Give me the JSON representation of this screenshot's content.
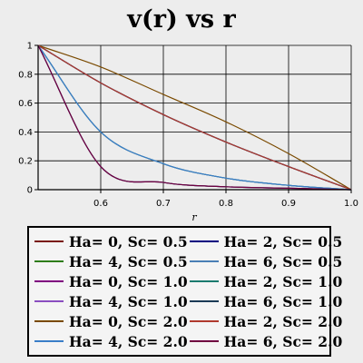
{
  "chart_data": {
    "type": "line",
    "title": "v(r) vs r",
    "xlabel": "r",
    "ylabel": "",
    "xlim": [
      0.5,
      1.0
    ],
    "ylim": [
      0,
      1
    ],
    "xticks": [
      "0.6",
      "0.7",
      "0.8",
      "0.9",
      "1.0"
    ],
    "yticks": [
      "0",
      "0.2",
      "0.4",
      "0.6",
      "0.8",
      "1"
    ],
    "grid": true,
    "legend_position": "bottom",
    "series": [
      {
        "name": "Ha= 0, Sc= 0.5",
        "color": "#7a1a10",
        "x": [
          0.5,
          0.6,
          0.7,
          0.8,
          0.9,
          1.0
        ],
        "y": [
          1.0,
          0.74,
          0.52,
          0.33,
          0.16,
          0.0
        ]
      },
      {
        "name": "Ha= 2, Sc= 0.5",
        "color": "#000080",
        "x": [
          0.5,
          0.6,
          0.7,
          0.8,
          0.9,
          1.0
        ],
        "y": [
          1.0,
          0.74,
          0.52,
          0.33,
          0.16,
          0.0
        ]
      },
      {
        "name": "Ha= 4, Sc= 0.5",
        "color": "#2e7d1a",
        "x": [
          0.5,
          0.6,
          0.7,
          0.8,
          0.9,
          1.0
        ],
        "y": [
          1.0,
          0.4,
          0.18,
          0.08,
          0.03,
          0.0
        ]
      },
      {
        "name": "Ha= 6, Sc= 0.5",
        "color": "#4a7fb5",
        "x": [
          0.5,
          0.6,
          0.7,
          0.8,
          0.9,
          1.0
        ],
        "y": [
          1.0,
          0.4,
          0.18,
          0.08,
          0.03,
          0.0
        ]
      },
      {
        "name": "Ha= 0, Sc= 1.0",
        "color": "#800080",
        "x": [
          0.5,
          0.6,
          0.7,
          0.8,
          0.9,
          1.0
        ],
        "y": [
          1.0,
          0.74,
          0.52,
          0.33,
          0.16,
          0.0
        ]
      },
      {
        "name": "Ha= 2, Sc= 1.0",
        "color": "#1a7a6e",
        "x": [
          0.5,
          0.6,
          0.7,
          0.8,
          0.9,
          1.0
        ],
        "y": [
          1.0,
          0.74,
          0.52,
          0.33,
          0.16,
          0.0
        ]
      },
      {
        "name": "Ha= 4, Sc= 1.0",
        "color": "#8a4ec0",
        "x": [
          0.5,
          0.6,
          0.7,
          0.8,
          0.9,
          1.0
        ],
        "y": [
          1.0,
          0.16,
          0.05,
          0.02,
          0.01,
          0.0
        ]
      },
      {
        "name": "Ha= 6, Sc= 1.0",
        "color": "#1a3a55",
        "x": [
          0.5,
          0.6,
          0.7,
          0.8,
          0.9,
          1.0
        ],
        "y": [
          1.0,
          0.16,
          0.05,
          0.02,
          0.01,
          0.0
        ]
      },
      {
        "name": "Ha= 0, Sc= 2.0",
        "color": "#7a4a00",
        "x": [
          0.5,
          0.6,
          0.7,
          0.8,
          0.9,
          1.0
        ],
        "y": [
          1.0,
          0.85,
          0.66,
          0.47,
          0.25,
          0.0
        ]
      },
      {
        "name": "Ha= 2, Sc= 2.0",
        "color": "#b03a2e",
        "x": [
          0.5,
          0.6,
          0.7,
          0.8,
          0.9,
          1.0
        ],
        "y": [
          1.0,
          0.74,
          0.52,
          0.33,
          0.16,
          0.0
        ]
      },
      {
        "name": "Ha= 4, Sc= 2.0",
        "color": "#3a7ec8",
        "x": [
          0.5,
          0.6,
          0.7,
          0.8,
          0.9,
          1.0
        ],
        "y": [
          1.0,
          0.4,
          0.18,
          0.08,
          0.03,
          0.0
        ]
      },
      {
        "name": "Ha= 6, Sc= 2.0",
        "color": "#700040",
        "x": [
          0.5,
          0.6,
          0.7,
          0.8,
          0.9,
          1.0
        ],
        "y": [
          1.0,
          0.16,
          0.05,
          0.02,
          0.01,
          0.0
        ]
      }
    ]
  }
}
